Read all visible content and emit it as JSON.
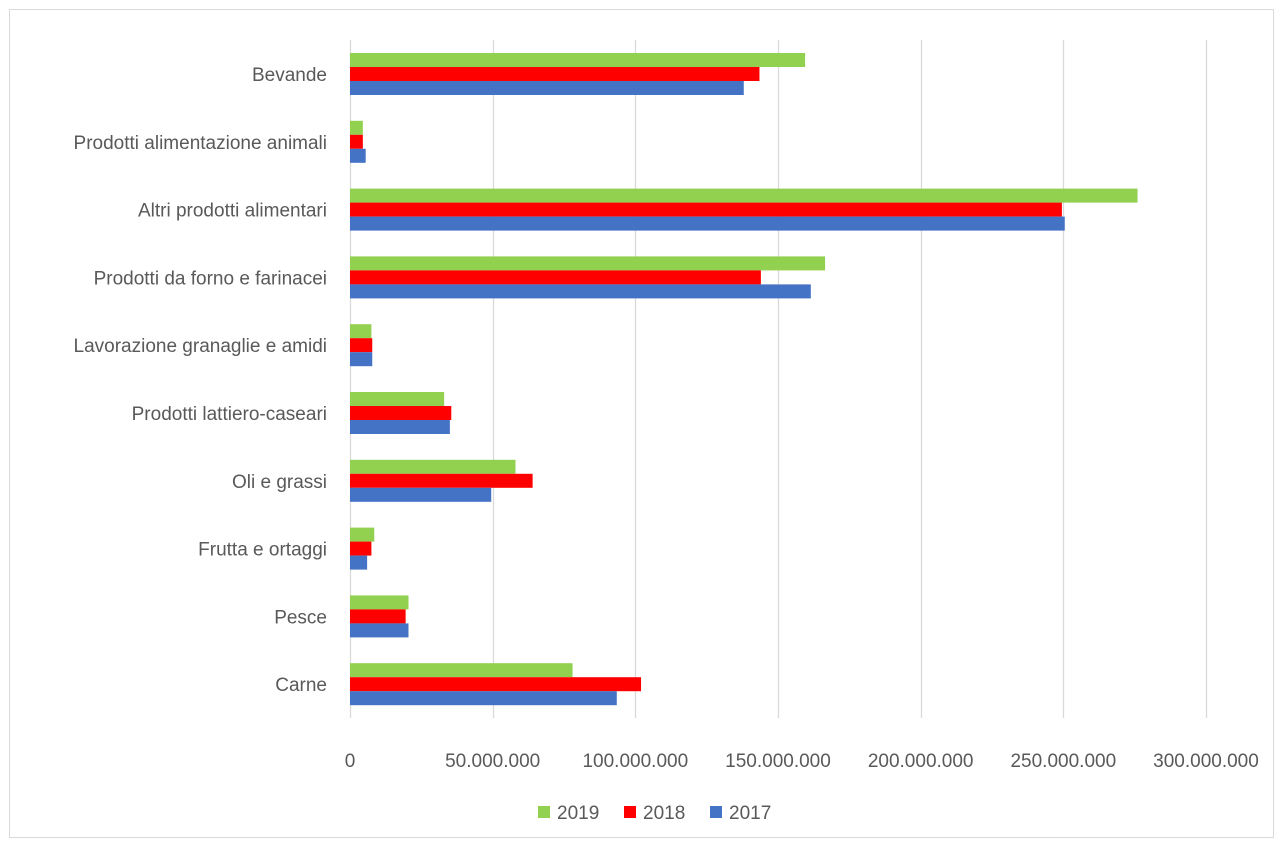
{
  "chart_data": {
    "type": "bar",
    "orientation": "horizontal",
    "title": "",
    "xlabel": "",
    "ylabel": "",
    "categories": [
      "Carne",
      "Pesce",
      "Frutta e ortaggi",
      "Oli e grassi",
      "Prodotti lattiero-caseari",
      "Lavorazione granaglie e amidi",
      "Prodotti da forno e farinacei",
      "Altri prodotti alimentari",
      "Prodotti alimentazione animali",
      "Bevande"
    ],
    "series": [
      {
        "name": "2019",
        "color": "#92d050",
        "values": [
          78000000,
          20500000,
          8500000,
          58000000,
          33000000,
          7500000,
          166500000,
          276000000,
          4500000,
          159500000
        ]
      },
      {
        "name": "2018",
        "color": "#ff0000",
        "values": [
          102000000,
          19500000,
          7500000,
          64000000,
          35500000,
          7800000,
          144000000,
          249500000,
          4500000,
          143500000
        ]
      },
      {
        "name": "2017",
        "color": "#4472c4",
        "values": [
          93500000,
          20500000,
          6000000,
          49500000,
          35000000,
          7800000,
          161500000,
          250500000,
          5500000,
          138000000
        ]
      }
    ],
    "xlim": [
      0,
      300000000
    ],
    "x_ticks": [
      0,
      50000000,
      100000000,
      150000000,
      200000000,
      250000000,
      300000000
    ],
    "x_tick_labels": [
      "0",
      "50.000.000",
      "100.000.000",
      "150.000.000",
      "200.000.000",
      "250.000.000",
      "300.000.000"
    ],
    "grid": "vertical",
    "legend_position": "bottom",
    "legend_order": [
      "2019",
      "2018",
      "2017"
    ]
  }
}
